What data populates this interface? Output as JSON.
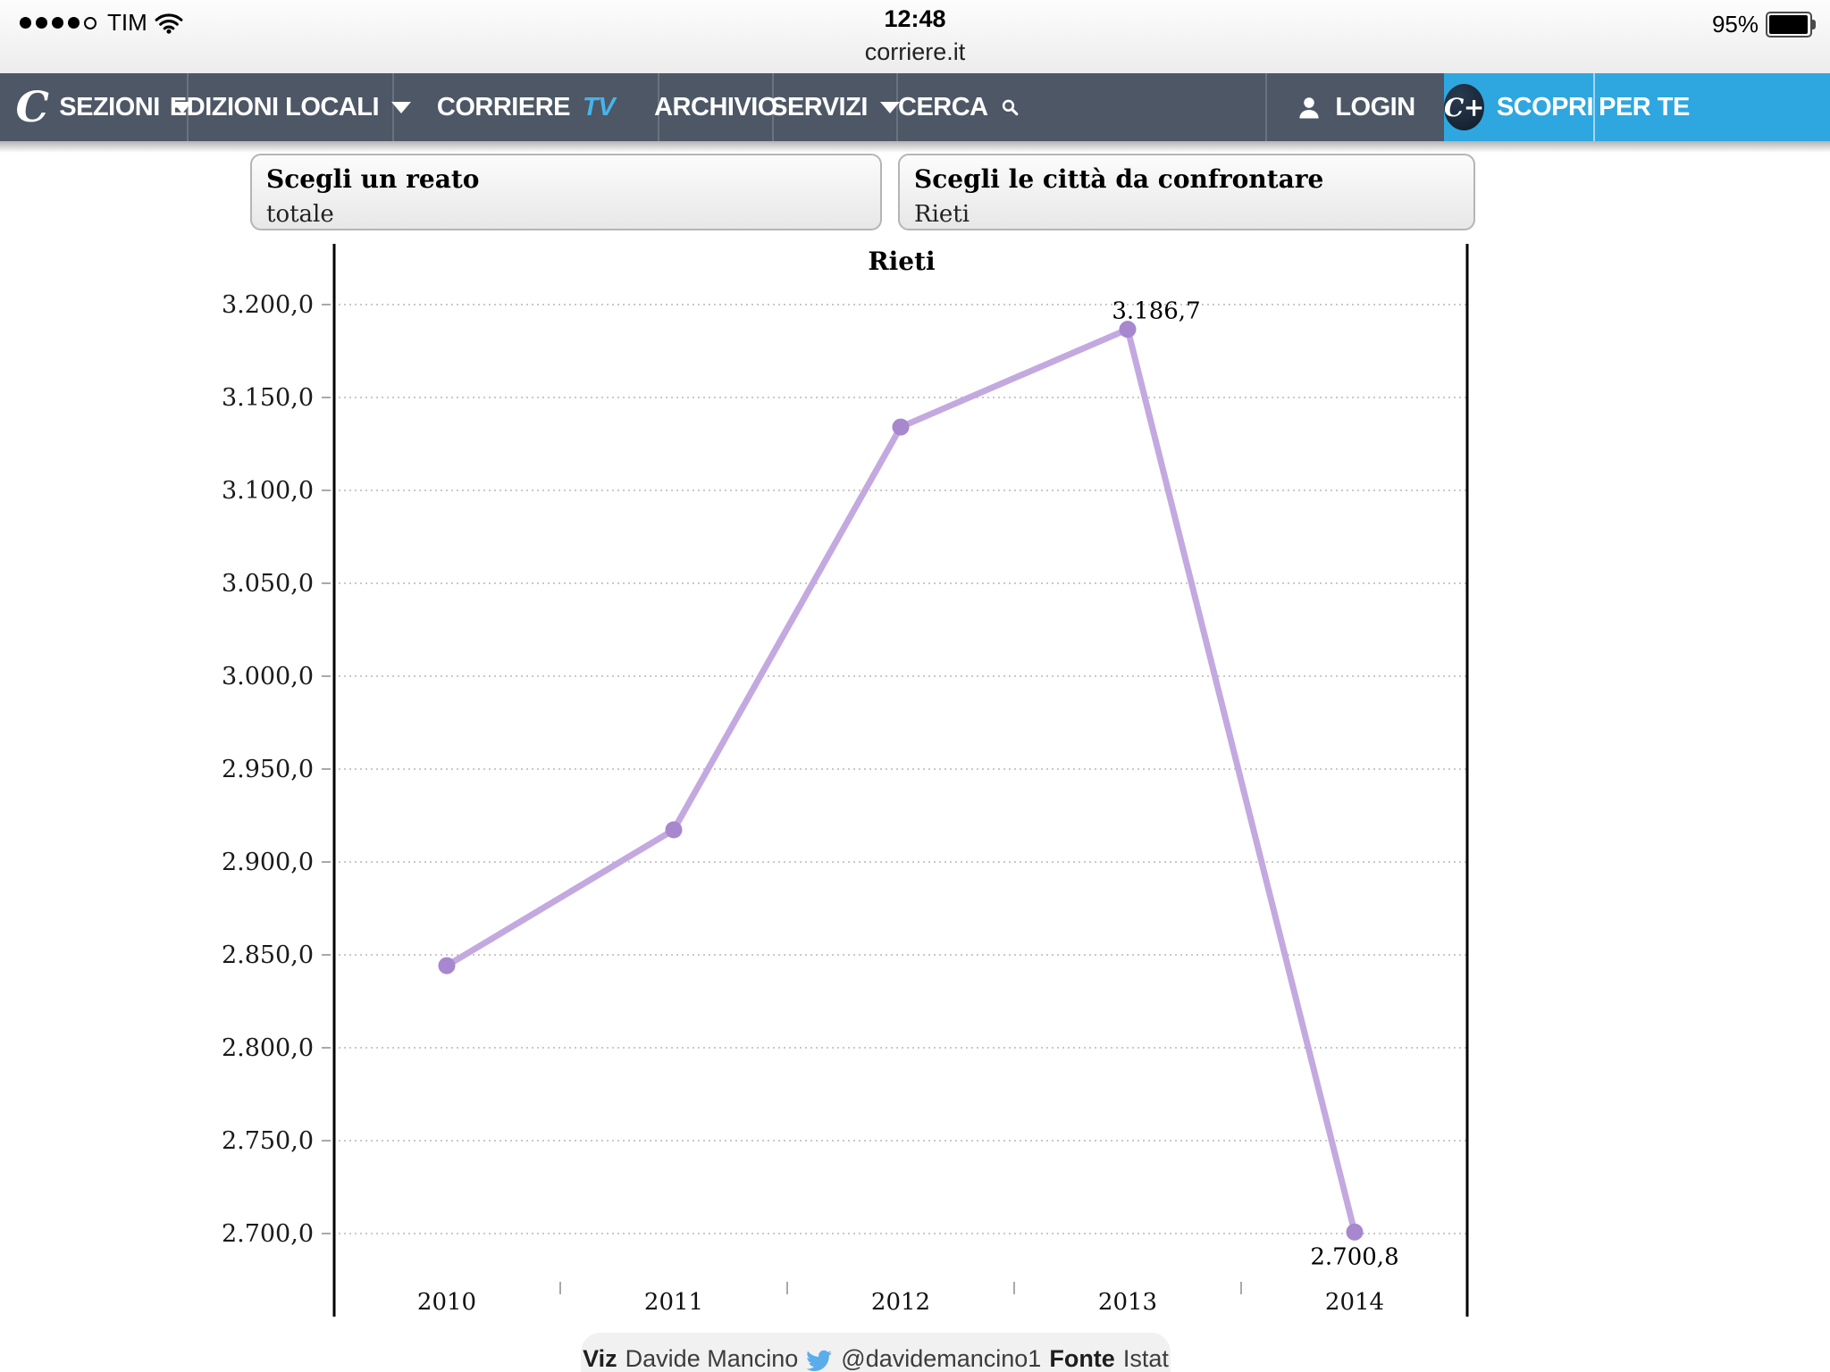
{
  "status_bar": {
    "carrier": "TIM",
    "time": "12:48",
    "url": "corriere.it",
    "battery_percent": "95%"
  },
  "nav": {
    "logo": "C",
    "sezioni": "SEZIONI",
    "edizioni_locali": "EDIZIONI LOCALI",
    "corriere": "CORRIERE",
    "corriere_tv": "TV",
    "archivio": "ARCHIVIO",
    "servizi": "SERVIZI",
    "cerca": "CERCA",
    "login": "LOGIN",
    "cplus": "C+",
    "scopri": "SCOPRI",
    "per_te": "PER TE",
    "colors": {
      "bar": "#4d5766",
      "accent_blue": "#2ea7e0",
      "tv_blue": "#46b4e9"
    }
  },
  "filters": {
    "reato": {
      "label": "Scegli un reato",
      "value": "totale"
    },
    "citta": {
      "label": "Scegli le città da confrontare",
      "value": "Rieti"
    }
  },
  "chart_data": {
    "type": "line",
    "title": "Rieti",
    "categories": [
      "2010",
      "2011",
      "2012",
      "2013",
      "2014"
    ],
    "series": [
      {
        "name": "Rieti",
        "values": [
          2844.2,
          2917.3,
          3134.1,
          3186.7,
          2700.8
        ]
      }
    ],
    "point_labels": [
      {
        "index": 3,
        "text": "3.186,7",
        "position": "above"
      },
      {
        "index": 4,
        "text": "2.700,8",
        "position": "below"
      }
    ],
    "y_ticks": [
      "3.200,0",
      "3.150,0",
      "3.100,0",
      "3.050,0",
      "3.000,0",
      "2.950,0",
      "2.900,0",
      "2.850,0",
      "2.800,0",
      "2.750,0",
      "2.700,0"
    ],
    "ylim": [
      2700,
      3200
    ],
    "xlabel": "",
    "ylabel": "",
    "grid": "dotted horizontal",
    "legend": "none",
    "line_color": "#c3a9df",
    "marker_color": "#a787ce",
    "grid_color": "#c9c9c9",
    "axis_color": "#000000"
  },
  "footer": {
    "viz_label": "Viz",
    "viz_value": "Davide Mancino",
    "twitter_handle": "@davidemancino1",
    "fonte_label": "Fonte",
    "fonte_value": "Istat"
  }
}
